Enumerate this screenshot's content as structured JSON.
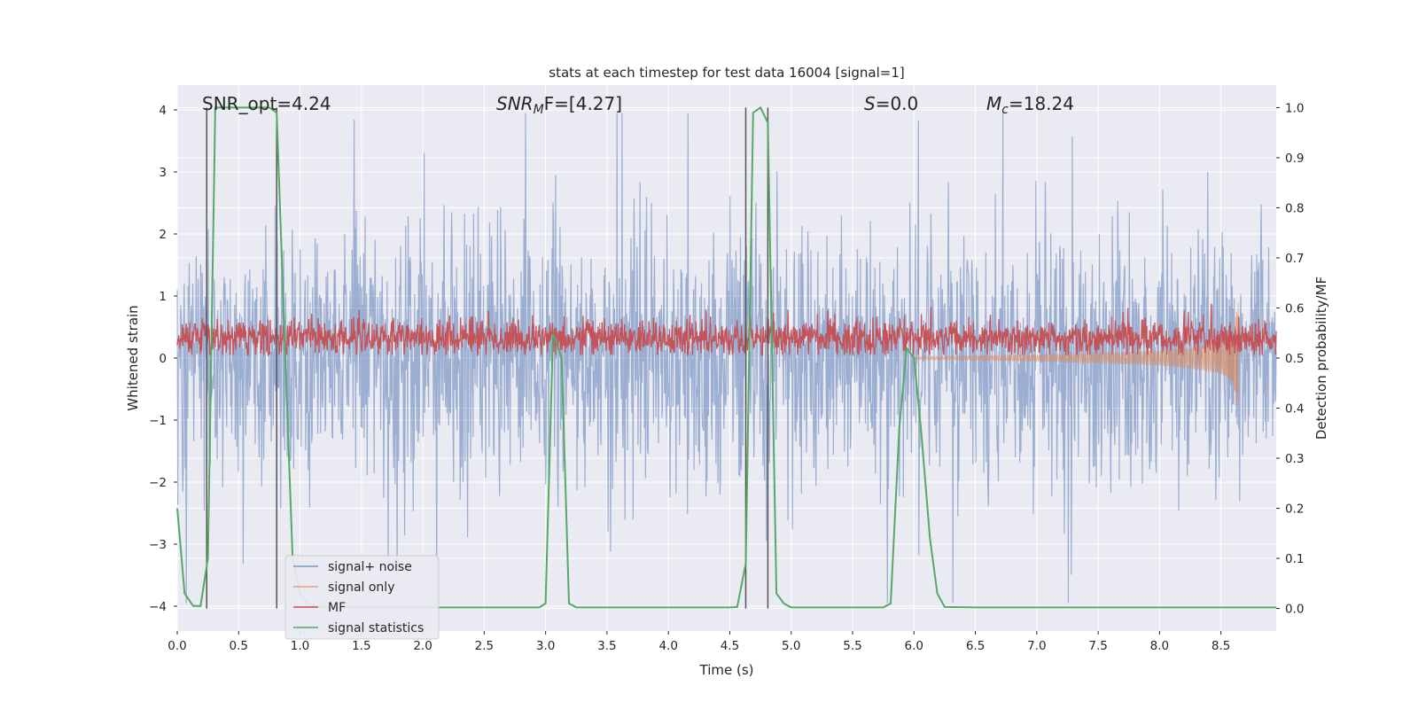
{
  "chart_data": {
    "type": "line",
    "title": "stats at each timestep for test data 16004 [signal=1]",
    "xlabel": "Time (s)",
    "ylabel_left": "Whitened strain",
    "ylabel_right": "Detection probability/MF",
    "xlim": [
      0.0,
      8.95
    ],
    "ylim_left": [
      -4.4,
      4.4
    ],
    "ylim_right": [
      -0.045,
      1.045
    ],
    "x_ticks": [
      "0.0",
      "0.5",
      "1.0",
      "1.5",
      "2.0",
      "2.5",
      "3.0",
      "3.5",
      "4.0",
      "4.5",
      "5.0",
      "5.5",
      "6.0",
      "6.5",
      "7.0",
      "7.5",
      "8.0",
      "8.5"
    ],
    "x_tick_values": [
      0.0,
      0.5,
      1.0,
      1.5,
      2.0,
      2.5,
      3.0,
      3.5,
      4.0,
      4.5,
      5.0,
      5.5,
      6.0,
      6.5,
      7.0,
      7.5,
      8.0,
      8.5
    ],
    "y_left_ticks": [
      "4",
      "3",
      "2",
      "1",
      "0",
      "−1",
      "−2",
      "−3",
      "−4"
    ],
    "y_left_tick_values": [
      4,
      3,
      2,
      1,
      0,
      -1,
      -2,
      -3,
      -4
    ],
    "y_right_ticks": [
      "1.0",
      "0.9",
      "0.8",
      "0.7",
      "0.6",
      "0.5",
      "0.4",
      "0.3",
      "0.2",
      "0.1",
      "0.0"
    ],
    "y_right_tick_values": [
      1.0,
      0.9,
      0.8,
      0.7,
      0.6,
      0.5,
      0.4,
      0.3,
      0.2,
      0.1,
      0.0
    ],
    "grid": true,
    "legend_position": "lower left",
    "annotations": {
      "snr_opt": "SNR_opt=4.24",
      "snr_mf_main": "SNR",
      "snr_mf_sub": "M",
      "snr_mf_rest": "F=[4.27]",
      "s_italic": "S",
      "s_rest": "=0.0",
      "mc_main": "M",
      "mc_sub": "c",
      "mc_rest": "=18.24"
    },
    "series": [
      {
        "name": "signal+ noise",
        "axis": "left",
        "color": "#4c72b0",
        "description_values": "noise band approx ±1.6 with spikes up to ±4"
      },
      {
        "name": "signal only",
        "axis": "left",
        "color": "#dd8452",
        "envelope": {
          "x": [
            6.0,
            7.0,
            7.5,
            8.0,
            8.3,
            8.5,
            8.6,
            8.64
          ],
          "amp": [
            0.02,
            0.05,
            0.08,
            0.12,
            0.18,
            0.26,
            0.4,
            0.9
          ]
        }
      },
      {
        "name": "MF",
        "axis": "left",
        "color": "#c44e52",
        "description_values": "positive band approx 0.1 to 0.7"
      },
      {
        "name": "signal statistics",
        "axis": "right",
        "color": "#55a868",
        "x": [
          0.0,
          0.06,
          0.13,
          0.19,
          0.25,
          0.31,
          0.38,
          0.44,
          0.5,
          0.56,
          0.63,
          0.69,
          0.75,
          0.81,
          0.88,
          0.94,
          1.0,
          1.06,
          1.13,
          1.19,
          1.25,
          1.5,
          2.0,
          2.5,
          2.95,
          3.0,
          3.06,
          3.13,
          3.19,
          3.25,
          3.5,
          4.0,
          4.5,
          4.56,
          4.63,
          4.69,
          4.75,
          4.81,
          4.88,
          4.94,
          5.0,
          5.25,
          5.5,
          5.75,
          5.81,
          5.88,
          5.94,
          6.0,
          6.06,
          6.13,
          6.19,
          6.25,
          6.5,
          7.0,
          7.5,
          8.0,
          8.5,
          8.95
        ],
        "y": [
          0.2,
          0.03,
          0.005,
          0.005,
          0.1,
          1.0,
          1.0,
          1.0,
          1.0,
          1.0,
          1.0,
          1.0,
          1.0,
          0.99,
          0.5,
          0.1,
          0.03,
          0.01,
          0.005,
          0.003,
          0.002,
          0.002,
          0.002,
          0.002,
          0.002,
          0.01,
          0.55,
          0.5,
          0.01,
          0.002,
          0.002,
          0.002,
          0.002,
          0.003,
          0.09,
          0.99,
          1.0,
          0.97,
          0.03,
          0.01,
          0.002,
          0.002,
          0.002,
          0.002,
          0.01,
          0.36,
          0.52,
          0.5,
          0.35,
          0.14,
          0.03,
          0.003,
          0.002,
          0.002,
          0.002,
          0.002,
          0.002,
          0.002
        ]
      }
    ],
    "vertical_markers_x": [
      0.24,
      0.81,
      4.63,
      4.81
    ]
  }
}
